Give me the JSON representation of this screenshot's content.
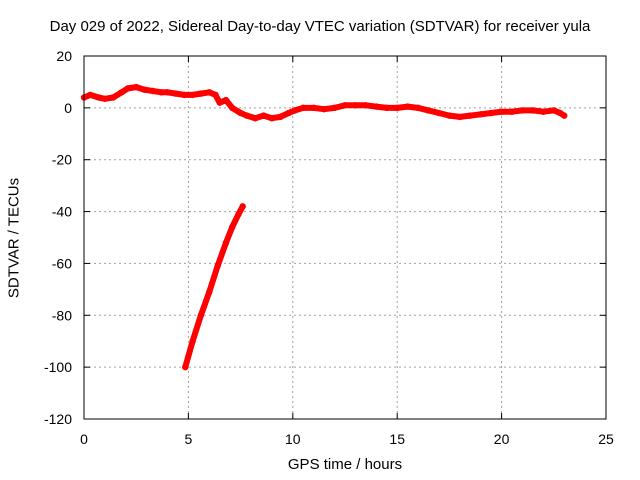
{
  "chart_data": {
    "type": "line",
    "title": "Day 029 of 2022, Sidereal Day-to-day VTEC variation (SDTVAR) for receiver yula",
    "xlabel": "GPS time / hours",
    "ylabel": "SDTVAR / TECUs",
    "xlim": [
      0,
      25
    ],
    "ylim": [
      -120,
      20
    ],
    "xticks": [
      0,
      5,
      10,
      15,
      20,
      25
    ],
    "yticks": [
      20,
      0,
      -20,
      -40,
      -60,
      -80,
      -100,
      -120
    ],
    "grid": true,
    "legend": "none",
    "series_color": "#ff0000",
    "series": [
      {
        "name": "main trace",
        "x": [
          0,
          0.3,
          0.7,
          1.0,
          1.4,
          1.8,
          2.1,
          2.5,
          2.9,
          3.3,
          3.7,
          4.0,
          4.4,
          4.8,
          5.2,
          5.6,
          6.0,
          6.3,
          6.5,
          6.8,
          7.1,
          7.5,
          7.8,
          8.2,
          8.6,
          9.0,
          9.4,
          9.8,
          10.1,
          10.5,
          11.0,
          11.5,
          12.0,
          12.5,
          13.0,
          13.5,
          14.0,
          14.5,
          15.0,
          15.5,
          16.0,
          16.5,
          17.0,
          17.5,
          18.0,
          18.5,
          19.0,
          19.5,
          20.0,
          20.5,
          21.0,
          21.5,
          22.0,
          22.5,
          22.8,
          23.0
        ],
        "y": [
          4,
          5,
          4,
          3.5,
          4,
          6,
          7.5,
          8,
          7,
          6.5,
          6,
          6,
          5.5,
          5,
          5,
          5.5,
          6,
          5,
          2,
          3,
          0,
          -2,
          -3,
          -4,
          -3,
          -4,
          -3.5,
          -2,
          -1,
          0,
          0,
          -0.5,
          0,
          1,
          1,
          1,
          0.5,
          0,
          0,
          0.5,
          0,
          -1,
          -2,
          -3,
          -3.5,
          -3,
          -2.5,
          -2,
          -1.5,
          -1.5,
          -1,
          -1,
          -1.5,
          -1,
          -2,
          -3
        ]
      },
      {
        "name": "steep segment",
        "x": [
          4.85,
          5.2,
          5.6,
          6.0,
          6.4,
          6.8,
          7.1,
          7.4,
          7.6
        ],
        "y": [
          -100,
          -90,
          -80,
          -71,
          -61,
          -52,
          -46,
          -41,
          -38
        ]
      }
    ]
  }
}
